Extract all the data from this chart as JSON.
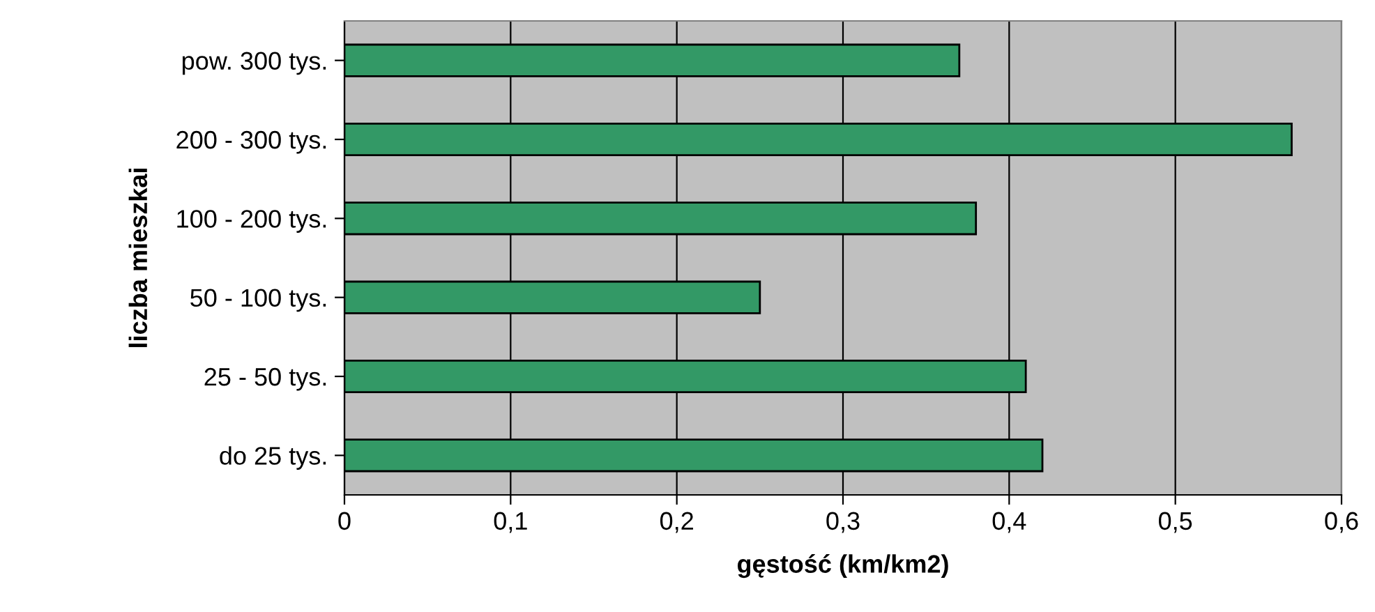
{
  "chart_data": {
    "type": "bar",
    "orientation": "horizontal",
    "xlabel": "gęstość (km/km2)",
    "ylabel": "liczba mieszkai",
    "categories": [
      "pow. 300 tys.",
      "200 - 300 tys.",
      "100 - 200 tys.",
      "50 - 100 tys.",
      "25 - 50 tys.",
      "do 25 tys."
    ],
    "values": [
      0.37,
      0.57,
      0.38,
      0.25,
      0.41,
      0.42
    ],
    "color": "#339966",
    "xlim": [
      0,
      0.6
    ],
    "xticks": [
      {
        "value": 0,
        "label": "0"
      },
      {
        "value": 0.1,
        "label": "0,1"
      },
      {
        "value": 0.2,
        "label": "0,2"
      },
      {
        "value": 0.3,
        "label": "0,3"
      },
      {
        "value": 0.4,
        "label": "0,4"
      },
      {
        "value": 0.5,
        "label": "0,5"
      },
      {
        "value": 0.6,
        "label": "0,6"
      }
    ],
    "grid": "x",
    "legend": false
  }
}
